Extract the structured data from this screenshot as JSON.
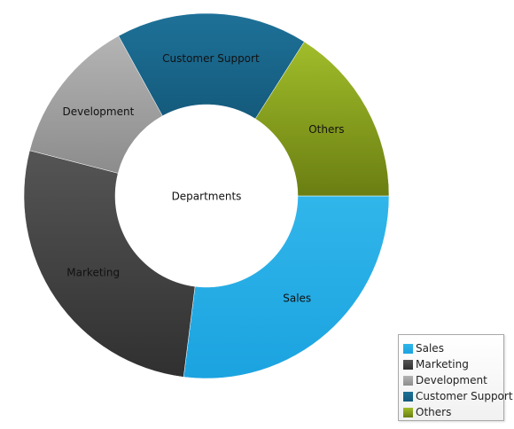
{
  "chart_data": {
    "type": "pie",
    "subtype": "doughnut",
    "center_label": "Departments",
    "slices": [
      {
        "label": "Sales",
        "value": 27,
        "color_top": "#31b6ea",
        "color_bottom": "#1ba3e0"
      },
      {
        "label": "Marketing",
        "value": 27,
        "color_top": "#555555",
        "color_bottom": "#303030"
      },
      {
        "label": "Development",
        "value": 13,
        "color_top": "#b4b4b4",
        "color_bottom": "#8c8c8c"
      },
      {
        "label": "Customer Support",
        "value": 17,
        "color_top": "#1e7198",
        "color_bottom": "#145a7c"
      },
      {
        "label": "Others",
        "value": 16,
        "color_top": "#a1bd2a",
        "color_bottom": "#6a7e12"
      }
    ],
    "legend": {
      "position": "bottom-right",
      "items": [
        "Sales",
        "Marketing",
        "Development",
        "Customer Support",
        "Others"
      ]
    }
  }
}
